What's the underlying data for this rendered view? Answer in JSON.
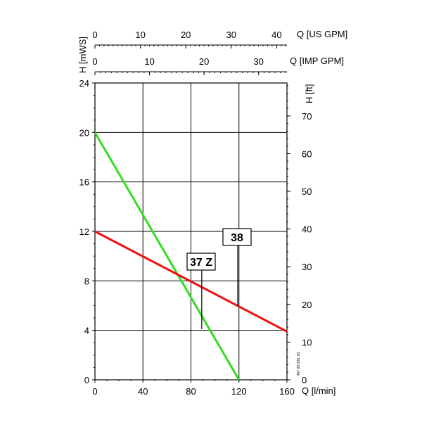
{
  "chart_data": {
    "type": "line",
    "x_unit_label": "Q [l/min]",
    "y_left_label": "H [mWS]",
    "y_right_label": "H [ft]",
    "top_axis_1_label": "Q [US GPM]",
    "top_axis_2_label": "Q [IMP GPM]",
    "xlim": [
      0,
      160
    ],
    "ylim": [
      0,
      24
    ],
    "x_ticks": [
      0,
      40,
      80,
      120,
      160
    ],
    "y_ticks": [
      0,
      4,
      8,
      12,
      16,
      20,
      24
    ],
    "ft_ticks": [
      0,
      10,
      20,
      30,
      40,
      50,
      60,
      70
    ],
    "usgpm_ticks": [
      0,
      10,
      20,
      30,
      40
    ],
    "impgpm_ticks": [
      0,
      10,
      20,
      30
    ],
    "grid": true,
    "series": [
      {
        "name": "37 Z",
        "color": "#33dd22",
        "x": [
          0,
          120
        ],
        "y": [
          20,
          0
        ]
      },
      {
        "name": "38",
        "color": "#ee1111",
        "x": [
          0,
          160
        ],
        "y": [
          12,
          3.9
        ]
      }
    ],
    "callouts": [
      {
        "label": "37 Z",
        "x": 89,
        "y": 4.1
      },
      {
        "label": "38",
        "x": 119,
        "y": 6
      }
    ],
    "code": "457 80 028_01"
  }
}
